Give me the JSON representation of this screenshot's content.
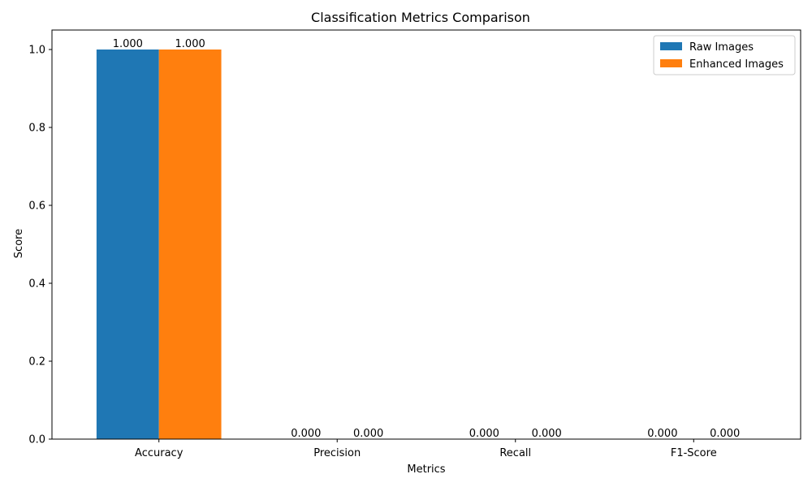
{
  "chart_data": {
    "type": "bar",
    "title": "Classification Metrics Comparison",
    "xlabel": "Metrics",
    "ylabel": "Score",
    "categories": [
      "Accuracy",
      "Precision",
      "Recall",
      "F1-Score"
    ],
    "series": [
      {
        "name": "Raw Images",
        "values": [
          1.0,
          0.0,
          0.0,
          0.0
        ],
        "color": "#1f77b4",
        "data_labels": [
          "1.000",
          "0.000",
          "0.000",
          "0.000"
        ]
      },
      {
        "name": "Enhanced Images",
        "values": [
          1.0,
          0.0,
          0.0,
          0.0
        ],
        "color": "#ff7f0e",
        "data_labels": [
          "1.000",
          "0.000",
          "0.000",
          "0.000"
        ]
      }
    ],
    "ylim": [
      0,
      1.05
    ],
    "yticks": [
      0.0,
      0.2,
      0.4,
      0.6,
      0.8,
      1.0
    ],
    "ytick_labels": [
      "0.0",
      "0.2",
      "0.4",
      "0.6",
      "0.8",
      "1.0"
    ],
    "grid": false,
    "legend_position": "top-right"
  }
}
